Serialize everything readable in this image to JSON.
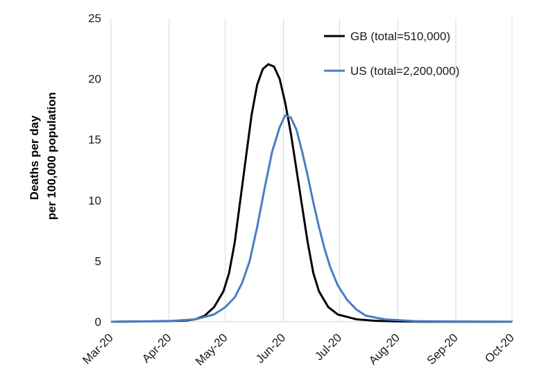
{
  "chart_data": {
    "type": "line",
    "ylabel": [
      "Deaths per day",
      "per 100,000 population"
    ],
    "xlabel": "",
    "x_ticks": [
      "Mar-20",
      "Apr-20",
      "May-20",
      "Jun-20",
      "Jul-20",
      "Aug-20",
      "Sep-20",
      "Oct-20"
    ],
    "ylim": [
      0,
      25
    ],
    "y_ticks": [
      0,
      5,
      10,
      15,
      20,
      25
    ],
    "grid": "vertical",
    "legend_position": "top-right",
    "series": [
      {
        "name": "GB (total=510,000)",
        "color": "#000000",
        "points": [
          [
            "2020-03-01",
            0
          ],
          [
            "2020-03-31",
            0.05
          ],
          [
            "2020-04-10",
            0.1
          ],
          [
            "2020-04-15",
            0.2
          ],
          [
            "2020-04-20",
            0.5
          ],
          [
            "2020-04-25",
            1.2
          ],
          [
            "2020-04-30",
            2.5
          ],
          [
            "2020-05-03",
            4.0
          ],
          [
            "2020-05-06",
            6.5
          ],
          [
            "2020-05-09",
            10.0
          ],
          [
            "2020-05-12",
            13.5
          ],
          [
            "2020-05-15",
            17.0
          ],
          [
            "2020-05-18",
            19.5
          ],
          [
            "2020-05-21",
            20.8
          ],
          [
            "2020-05-24",
            21.2
          ],
          [
            "2020-05-27",
            21.0
          ],
          [
            "2020-05-30",
            20.0
          ],
          [
            "2020-06-02",
            18.0
          ],
          [
            "2020-06-05",
            15.5
          ],
          [
            "2020-06-08",
            12.5
          ],
          [
            "2020-06-11",
            9.5
          ],
          [
            "2020-06-14",
            6.5
          ],
          [
            "2020-06-17",
            4.0
          ],
          [
            "2020-06-20",
            2.5
          ],
          [
            "2020-06-25",
            1.2
          ],
          [
            "2020-06-30",
            0.6
          ],
          [
            "2020-07-10",
            0.2
          ],
          [
            "2020-07-20",
            0.08
          ],
          [
            "2020-08-01",
            0.03
          ],
          [
            "2020-08-15",
            0.01
          ]
        ]
      },
      {
        "name": "US (total=2,200,000)",
        "color": "#4a7bc4",
        "points": [
          [
            "2020-03-01",
            0
          ],
          [
            "2020-04-01",
            0.05
          ],
          [
            "2020-04-15",
            0.2
          ],
          [
            "2020-04-25",
            0.6
          ],
          [
            "2020-05-01",
            1.2
          ],
          [
            "2020-05-06",
            2.0
          ],
          [
            "2020-05-10",
            3.2
          ],
          [
            "2020-05-14",
            5.0
          ],
          [
            "2020-05-18",
            7.8
          ],
          [
            "2020-05-22",
            11.0
          ],
          [
            "2020-05-26",
            14.0
          ],
          [
            "2020-05-30",
            16.0
          ],
          [
            "2020-06-02",
            17.0
          ],
          [
            "2020-06-05",
            16.8
          ],
          [
            "2020-06-08",
            15.8
          ],
          [
            "2020-06-11",
            14.0
          ],
          [
            "2020-06-14",
            12.0
          ],
          [
            "2020-06-17",
            9.8
          ],
          [
            "2020-06-20",
            7.8
          ],
          [
            "2020-06-23",
            6.0
          ],
          [
            "2020-06-26",
            4.5
          ],
          [
            "2020-06-30",
            3.0
          ],
          [
            "2020-07-05",
            1.8
          ],
          [
            "2020-07-10",
            1.0
          ],
          [
            "2020-07-15",
            0.5
          ],
          [
            "2020-07-25",
            0.2
          ],
          [
            "2020-08-10",
            0.05
          ],
          [
            "2020-09-01",
            0.02
          ],
          [
            "2020-10-01",
            0.01
          ]
        ]
      }
    ]
  }
}
